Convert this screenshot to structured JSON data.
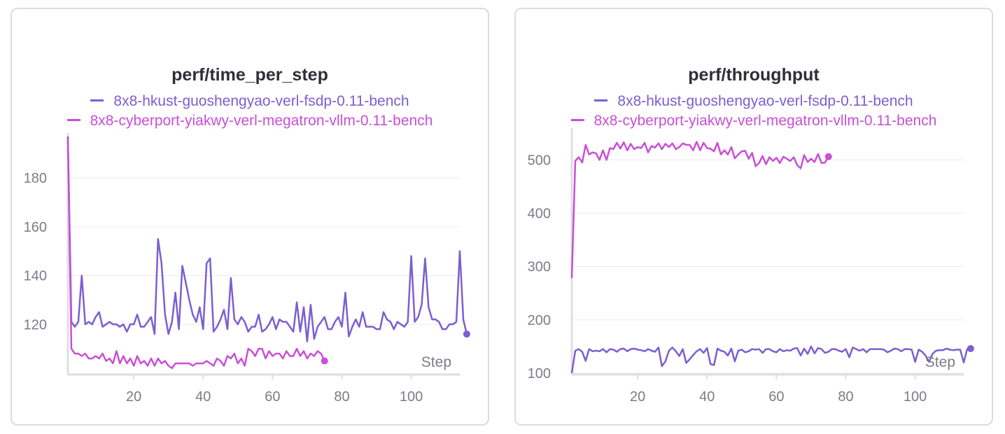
{
  "colors": {
    "series_a": "#7b5fd1",
    "series_b": "#c94fd6",
    "grid": "#ececef",
    "axis": "#dedee3",
    "tick": "#7c7c88"
  },
  "chart_data": [
    {
      "type": "line",
      "title": "perf/time_per_step",
      "xlabel": "Step",
      "ylabel": "",
      "xlim": [
        1,
        114
      ],
      "ylim": [
        100,
        197
      ],
      "xticks": [
        20,
        40,
        60,
        80,
        100
      ],
      "yticks": [
        120,
        140,
        160,
        180
      ],
      "legend": "top-center",
      "grid": true,
      "series": [
        {
          "name": "8x8-hkust-guoshengyao-verl-fsdp-0.11-bench",
          "color": "#7b5fd1",
          "x_start": 1,
          "values": [
            197,
            121,
            119,
            121,
            140,
            120,
            121,
            120,
            123,
            125,
            119,
            120,
            121,
            120,
            120,
            119,
            120,
            117,
            120,
            120,
            124,
            119,
            119,
            121,
            123,
            116,
            155,
            145,
            124,
            116,
            121,
            133,
            118,
            144,
            137,
            130,
            124,
            121,
            127,
            118,
            145,
            147,
            117,
            119,
            122,
            126,
            118,
            139,
            122,
            120,
            123,
            121,
            117,
            119,
            119,
            124,
            117,
            118,
            120,
            123,
            118,
            122,
            121,
            121,
            119,
            117,
            129,
            117,
            127,
            113,
            128,
            114,
            119,
            121,
            123,
            118,
            118,
            121,
            123,
            119,
            133,
            115,
            119,
            122,
            119,
            125,
            119,
            119,
            119,
            118,
            118,
            125,
            122,
            121,
            118,
            121,
            120,
            119,
            121,
            148,
            121,
            123,
            128,
            147,
            127,
            122,
            122,
            121,
            118,
            118,
            120,
            120,
            121,
            150,
            122,
            116
          ]
        },
        {
          "name": "8x8-cyberport-yiakwy-verl-megatron-vllm-0.11-bench",
          "color": "#c94fd6",
          "x_start": 1,
          "values": [
            196,
            110,
            108,
            108,
            107,
            108,
            106,
            106,
            107,
            106,
            108,
            105,
            106,
            104,
            109,
            104,
            107,
            104,
            106,
            103,
            107,
            104,
            105,
            103,
            106,
            103,
            106,
            104,
            105,
            103,
            102,
            104,
            104,
            104,
            104,
            104,
            103,
            104,
            104,
            104,
            105,
            104,
            103,
            106,
            105,
            103,
            107,
            106,
            108,
            104,
            106,
            103,
            110,
            109,
            107,
            110,
            110,
            106,
            109,
            107,
            108,
            108,
            106,
            109,
            107,
            107,
            110,
            107,
            109,
            106,
            108,
            107,
            109,
            108,
            105
          ]
        }
      ]
    },
    {
      "type": "line",
      "title": "perf/throughput",
      "xlabel": "Step",
      "ylabel": "",
      "xlim": [
        1,
        114
      ],
      "ylim": [
        100,
        553
      ],
      "xticks": [
        20,
        40,
        60,
        80,
        100
      ],
      "yticks": [
        100,
        200,
        300,
        400,
        500
      ],
      "legend": "top-center",
      "grid": true,
      "series": [
        {
          "name": "8x8-hkust-guoshengyao-verl-fsdp-0.11-bench",
          "color": "#7b5fd1",
          "x_start": 1,
          "values": [
            100,
            142,
            145,
            140,
            123,
            145,
            141,
            142,
            141,
            145,
            139,
            145,
            144,
            140,
            145,
            146,
            141,
            145,
            146,
            144,
            143,
            141,
            145,
            142,
            140,
            148,
            113,
            122,
            142,
            148,
            141,
            132,
            145,
            119,
            126,
            134,
            141,
            145,
            138,
            147,
            117,
            115,
            146,
            142,
            140,
            133,
            146,
            122,
            142,
            144,
            139,
            141,
            145,
            144,
            145,
            138,
            145,
            145,
            141,
            139,
            145,
            141,
            143,
            142,
            146,
            147,
            133,
            146,
            136,
            150,
            137,
            147,
            145,
            138,
            140,
            145,
            145,
            142,
            140,
            145,
            130,
            148,
            145,
            142,
            145,
            139,
            145,
            145,
            145,
            145,
            144,
            139,
            142,
            146,
            145,
            141,
            145,
            145,
            144,
            121,
            144,
            140,
            133,
            121,
            136,
            142,
            143,
            143,
            146,
            144,
            143,
            144,
            144,
            120,
            145,
            146
          ]
        },
        {
          "name": "8x8-cyberport-yiakwy-verl-megatron-vllm-0.11-bench",
          "color": "#c94fd6",
          "x_start": 1,
          "values": [
            278,
            498,
            505,
            495,
            528,
            510,
            514,
            512,
            500,
            518,
            500,
            522,
            520,
            532,
            521,
            533,
            518,
            530,
            520,
            524,
            522,
            532,
            514,
            526,
            523,
            531,
            520,
            530,
            524,
            531,
            520,
            524,
            531,
            528,
            528,
            518,
            534,
            518,
            532,
            522,
            521,
            516,
            532,
            510,
            518,
            510,
            524,
            503,
            510,
            516,
            517,
            502,
            513,
            488,
            494,
            507,
            492,
            505,
            498,
            504,
            494,
            506,
            502,
            498,
            505,
            490,
            484,
            509,
            496,
            502,
            496,
            511,
            494,
            495,
            506
          ]
        }
      ]
    }
  ]
}
